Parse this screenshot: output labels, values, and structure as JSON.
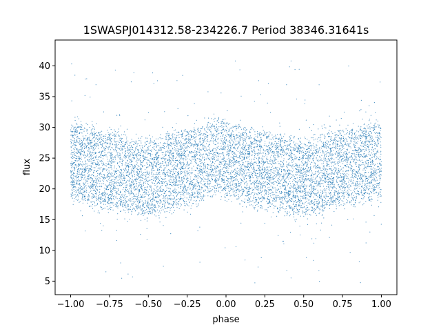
{
  "chart_data": {
    "type": "scatter",
    "title": "1SWASPJ014312.58-234226.7 Period 38346.31641s",
    "xlabel": "phase",
    "ylabel": "flux",
    "xlim": [
      -1.1,
      1.1
    ],
    "ylim": [
      2.8,
      44.2
    ],
    "x_ticks": [
      -1.0,
      -0.75,
      -0.5,
      -0.25,
      0.0,
      0.25,
      0.5,
      0.75,
      1.0
    ],
    "x_tick_labels": [
      "−1.00",
      "−0.75",
      "−0.50",
      "−0.25",
      "0.00",
      "0.25",
      "0.50",
      "0.75",
      "1.00"
    ],
    "y_ticks": [
      5,
      10,
      15,
      20,
      25,
      30,
      35,
      40
    ],
    "y_tick_labels": [
      "5",
      "10",
      "15",
      "20",
      "25",
      "30",
      "35",
      "40"
    ],
    "grid": false,
    "marker_color": "#1f77b4",
    "series": [
      {
        "name": "",
        "description_of_trend_points": [
          {
            "phase": -1.0,
            "median_flux": 24.5
          },
          {
            "phase": -0.75,
            "median_flux": 23.0
          },
          {
            "phase": -0.5,
            "median_flux": 21.8
          },
          {
            "phase": -0.25,
            "median_flux": 23.5
          },
          {
            "phase": -0.05,
            "median_flux": 25.0
          },
          {
            "phase": 0.25,
            "median_flux": 23.0
          },
          {
            "phase": 0.5,
            "median_flux": 21.8
          },
          {
            "phase": 0.75,
            "median_flux": 23.5
          },
          {
            "phase": 1.0,
            "median_flux": 24.5
          }
        ],
        "core_spread_flux": [
          18,
          31
        ],
        "outlier_range_flux": [
          4.5,
          42
        ]
      }
    ]
  }
}
